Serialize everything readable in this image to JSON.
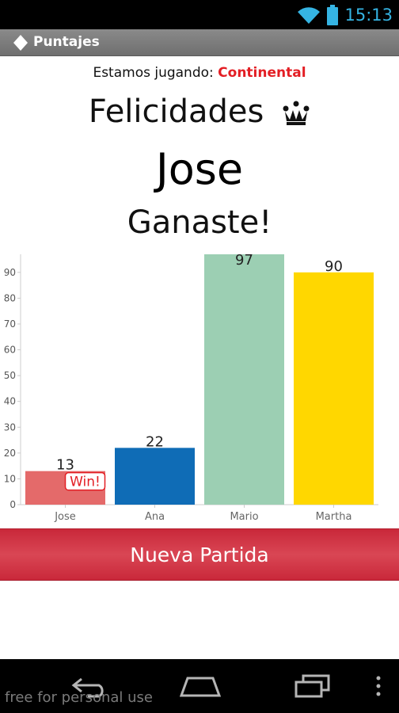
{
  "status_bar": {
    "time": "15:13",
    "icons": [
      "wifi-icon",
      "battery-icon"
    ]
  },
  "action_bar": {
    "title": "Puntajes",
    "icon": "diamond-icon"
  },
  "header": {
    "playing_prefix": "Estamos jugando: ",
    "game_name": "Continental",
    "congrats": "Felicidades",
    "winner_name": "Jose",
    "won_text": "Ganaste!"
  },
  "chart_data": {
    "type": "bar",
    "categories": [
      "Jose",
      "Ana",
      "Mario",
      "Martha"
    ],
    "values": [
      13,
      22,
      97,
      90
    ],
    "colors": [
      "#e46a6a",
      "#0f6cb6",
      "#9ccfb3",
      "#ffd700"
    ],
    "ylim": [
      0,
      97
    ],
    "yticks": [
      0,
      10,
      20,
      30,
      40,
      50,
      60,
      70,
      80,
      90
    ],
    "winner_badge": "Win!",
    "winner_index": 0,
    "grid": false
  },
  "actions": {
    "new_game": "Nueva Partida"
  },
  "nav_bar": {
    "watermark": "free for personal use",
    "icons": [
      "back-icon",
      "home-icon",
      "recents-icon",
      "menu-icon"
    ]
  },
  "colors": {
    "accent": "#e31e24",
    "button": "#cf3344",
    "status_time": "#35b4e3"
  }
}
